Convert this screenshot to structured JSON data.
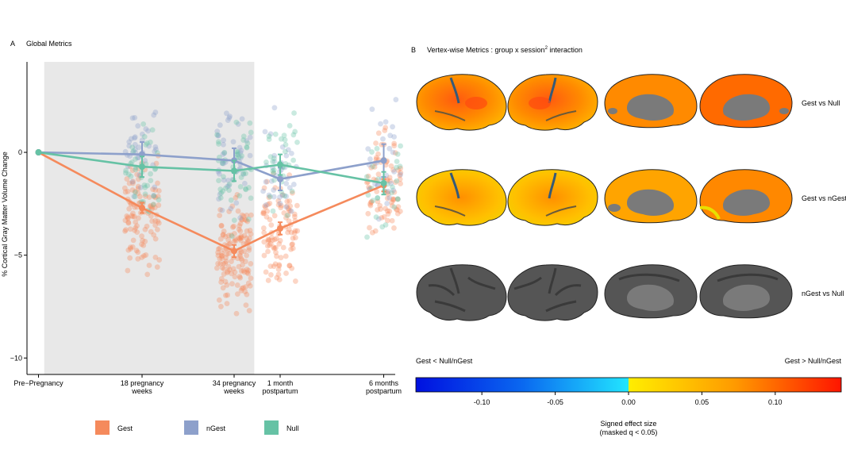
{
  "panel_a": {
    "letter": "A",
    "title": "Global Metrics"
  },
  "panel_b": {
    "letter": "B",
    "title_main": "Vertex-wise Metrics :  group x session",
    "title_sup": "2",
    "title_tail": " interaction"
  },
  "chart_data": {
    "type": "line",
    "ylabel": "% Cortical Gray Matter Volume Change",
    "ylim": [
      -10.8,
      4.4
    ],
    "yticks": [
      0,
      -5,
      -10
    ],
    "ytick_labels": [
      "0",
      "−5",
      "−10"
    ],
    "x": [
      0,
      18,
      34,
      42,
      60
    ],
    "xtick_labels": [
      [
        "Pre−Pregnancy"
      ],
      [
        "18 pregnancy",
        "weeks"
      ],
      [
        "34 pregnancy",
        "weeks"
      ],
      [
        "1 month",
        "postpartum"
      ],
      [
        "6 months",
        "postpartum"
      ]
    ],
    "shaded_region_x": [
      1,
      37.5
    ],
    "series": [
      {
        "name": "Gest",
        "color": "#f58a5c",
        "values": [
          0,
          -2.7,
          -4.8,
          -3.7,
          -1.6
        ],
        "err": [
          0,
          0.25,
          0.3,
          0.3,
          0.3
        ]
      },
      {
        "name": "nGest",
        "color": "#8da0cb",
        "values": [
          0,
          -0.1,
          -0.4,
          -1.3,
          -0.4
        ],
        "err": [
          0,
          0.6,
          0.6,
          0.55,
          0.8
        ]
      },
      {
        "name": "Null",
        "color": "#66c2a5",
        "values": [
          0,
          -0.7,
          -0.9,
          -0.6,
          -1.5
        ],
        "err": [
          0,
          0.5,
          0.5,
          0.5,
          0.55
        ]
      }
    ],
    "legend": [
      "Gest",
      "nGest",
      "Null"
    ],
    "legend_position": "bottom"
  },
  "brain_rows": [
    {
      "label": "Gest vs Null"
    },
    {
      "label": "Gest vs nGest"
    },
    {
      "label": "nGest vs Null"
    }
  ],
  "colorbar": {
    "left_label": "Gest < Null/nGest",
    "right_label": "Gest > Null/nGest",
    "ticks": [
      -0.1,
      -0.05,
      0.0,
      0.05,
      0.1
    ],
    "tick_labels": [
      "-0.10",
      "-0.05",
      "0.00",
      "0.05",
      "0.10"
    ],
    "range": [
      -0.145,
      0.145
    ],
    "caption_line1": "Signed effect size",
    "caption_line2": "(masked q < 0.05)"
  },
  "colors": {
    "shade": "#e8e8e8",
    "brain_gray": "#4a4a4a",
    "brain_medial": "#7a7a7a"
  }
}
